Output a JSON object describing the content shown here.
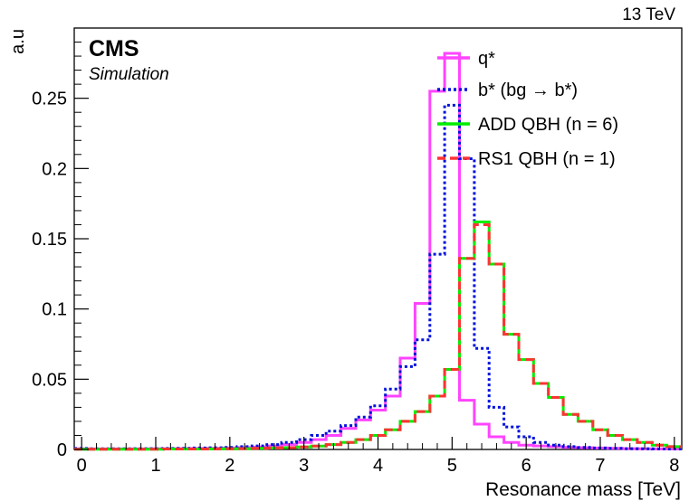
{
  "header": {
    "energy": "13 TeV"
  },
  "labels": {
    "experiment": "CMS",
    "status": "Simulation"
  },
  "colors": {
    "q_star": "#ff44ff",
    "b_star": "#0011dd",
    "add_qbh": "#00ee00",
    "rs1_qbh": "#ff3333"
  },
  "chart_data": {
    "type": "line",
    "style": "step-histogram",
    "xlabel": "Resonance mass [TeV]",
    "ylabel": "a.u",
    "xlim": [
      -0.1,
      8.1
    ],
    "ylim": [
      0,
      0.3
    ],
    "xticks": [
      "0",
      "1",
      "2",
      "3",
      "4",
      "5",
      "6",
      "7",
      "8"
    ],
    "yticks": [
      "0",
      "0.05",
      "0.1",
      "0.15",
      "0.2",
      "0.25"
    ],
    "grid": false,
    "legend_position": "top-right",
    "bin_edges": [
      -0.1,
      0.1,
      0.3,
      0.5,
      0.7,
      0.9,
      1.1,
      1.3,
      1.5,
      1.7,
      1.9,
      2.1,
      2.3,
      2.5,
      2.7,
      2.9,
      3.1,
      3.3,
      3.5,
      3.7,
      3.9,
      4.1,
      4.3,
      4.5,
      4.7,
      4.9,
      5.1,
      5.3,
      5.5,
      5.7,
      5.9,
      6.1,
      6.3,
      6.5,
      6.7,
      6.9,
      7.1,
      7.3,
      7.5,
      7.7,
      7.9,
      8.1
    ],
    "series": [
      {
        "name": "q*",
        "dash": "solid",
        "values": [
          0.0005,
          0.0004,
          0.0004,
          0.0004,
          0.0004,
          0.0005,
          0.0005,
          0.0006,
          0.0007,
          0.0008,
          0.001,
          0.0013,
          0.0017,
          0.0025,
          0.0035,
          0.005,
          0.007,
          0.01,
          0.015,
          0.021,
          0.028,
          0.038,
          0.065,
          0.104,
          0.255,
          0.282,
          0.035,
          0.018,
          0.009,
          0.005,
          0.003,
          0.0025,
          0.002,
          0.0015,
          0.0012,
          0.001,
          0.0008,
          0.0006,
          0.0005,
          0.0004,
          0.0003
        ]
      },
      {
        "name": "b* (bg → b*)",
        "dash": "dotted",
        "values": [
          0.0007,
          0.0005,
          0.0005,
          0.0005,
          0.0006,
          0.0006,
          0.0007,
          0.0008,
          0.001,
          0.0012,
          0.0015,
          0.002,
          0.0025,
          0.0035,
          0.005,
          0.007,
          0.01,
          0.013,
          0.017,
          0.023,
          0.031,
          0.043,
          0.059,
          0.078,
          0.139,
          0.245,
          0.207,
          0.072,
          0.03,
          0.016,
          0.009,
          0.005,
          0.003,
          0.002,
          0.0015,
          0.001,
          0.0008,
          0.0006,
          0.0005,
          0.0004,
          0.0003
        ]
      },
      {
        "name": "ADD QBH (n = 6)",
        "dash": "solid",
        "values": [
          0.0002,
          0.0002,
          0.0002,
          0.0002,
          0.0002,
          0.0002,
          0.0003,
          0.0003,
          0.0003,
          0.0004,
          0.0005,
          0.0006,
          0.0008,
          0.001,
          0.0013,
          0.0018,
          0.0024,
          0.0035,
          0.005,
          0.007,
          0.01,
          0.014,
          0.02,
          0.027,
          0.038,
          0.057,
          0.136,
          0.162,
          0.132,
          0.082,
          0.064,
          0.047,
          0.037,
          0.025,
          0.02,
          0.014,
          0.01,
          0.007,
          0.005,
          0.003,
          0.002
        ]
      },
      {
        "name": "RS1 QBH (n = 1)",
        "dash": "dashed",
        "values": [
          0.0002,
          0.0002,
          0.0002,
          0.0002,
          0.0002,
          0.0002,
          0.0003,
          0.0003,
          0.0003,
          0.0004,
          0.0005,
          0.0006,
          0.0008,
          0.001,
          0.0013,
          0.0018,
          0.0024,
          0.0035,
          0.005,
          0.007,
          0.01,
          0.014,
          0.02,
          0.027,
          0.038,
          0.057,
          0.136,
          0.16,
          0.132,
          0.082,
          0.064,
          0.047,
          0.037,
          0.025,
          0.02,
          0.014,
          0.01,
          0.007,
          0.005,
          0.003,
          0.002
        ]
      }
    ]
  }
}
